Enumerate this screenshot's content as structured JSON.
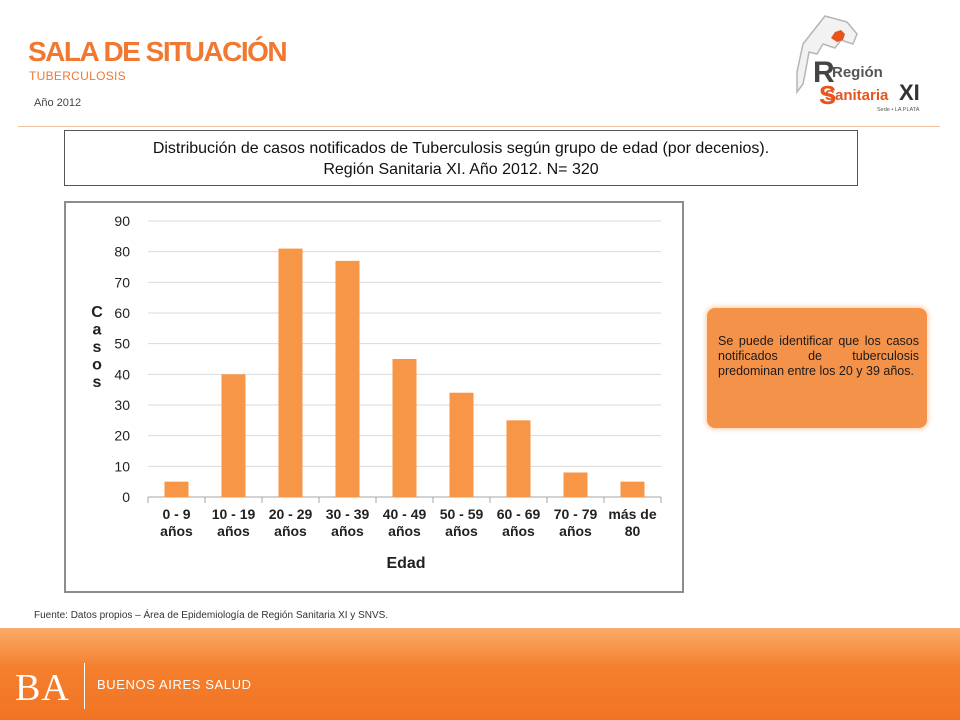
{
  "header": {
    "title": "SALA DE SITUACIÓN",
    "subtitle": "TUBERCULOSIS",
    "year": "Año 2012"
  },
  "logo": {
    "line1": "Región",
    "line2": "Sanitaria",
    "roman": "XI",
    "tagline": "Sede • LA PLATA"
  },
  "chart_title": {
    "line1": "Distribución de casos notificados de Tuberculosis  según grupo de edad (por decenios).",
    "line2": "Región Sanitaria XI. Año 2012. N= 320"
  },
  "chart_data": {
    "type": "bar",
    "title": "Distribución de casos notificados de Tuberculosis según grupo de edad (por decenios). Región Sanitaria XI. Año 2012. N= 320",
    "categories": [
      [
        "0 - 9",
        "años"
      ],
      [
        "10 - 19",
        "años"
      ],
      [
        "20 - 29",
        "años"
      ],
      [
        "30 - 39",
        "años"
      ],
      [
        "40 - 49",
        "años"
      ],
      [
        "50 - 59",
        "años"
      ],
      [
        "60 - 69",
        "años"
      ],
      [
        "70 - 79",
        "años"
      ],
      [
        "más de",
        "80"
      ]
    ],
    "values": [
      5,
      40,
      81,
      77,
      45,
      34,
      25,
      8,
      5
    ],
    "xlabel": "Edad",
    "ylabel": "Casos",
    "ylim": [
      0,
      90
    ],
    "yticks": [
      0,
      10,
      20,
      30,
      40,
      50,
      60,
      70,
      80,
      90
    ],
    "grid": true,
    "bar_color": "#f79646"
  },
  "note": {
    "text": "Se puede identificar que los casos notificados de tuberculosis predominan entre los 20 y 39 años."
  },
  "source": "Fuente: Datos propios – Área de Epidemiología de Región Sanitaria XI y SNVS.",
  "footer": {
    "ba": "BA",
    "label": "BUENOS AIRES SALUD"
  }
}
